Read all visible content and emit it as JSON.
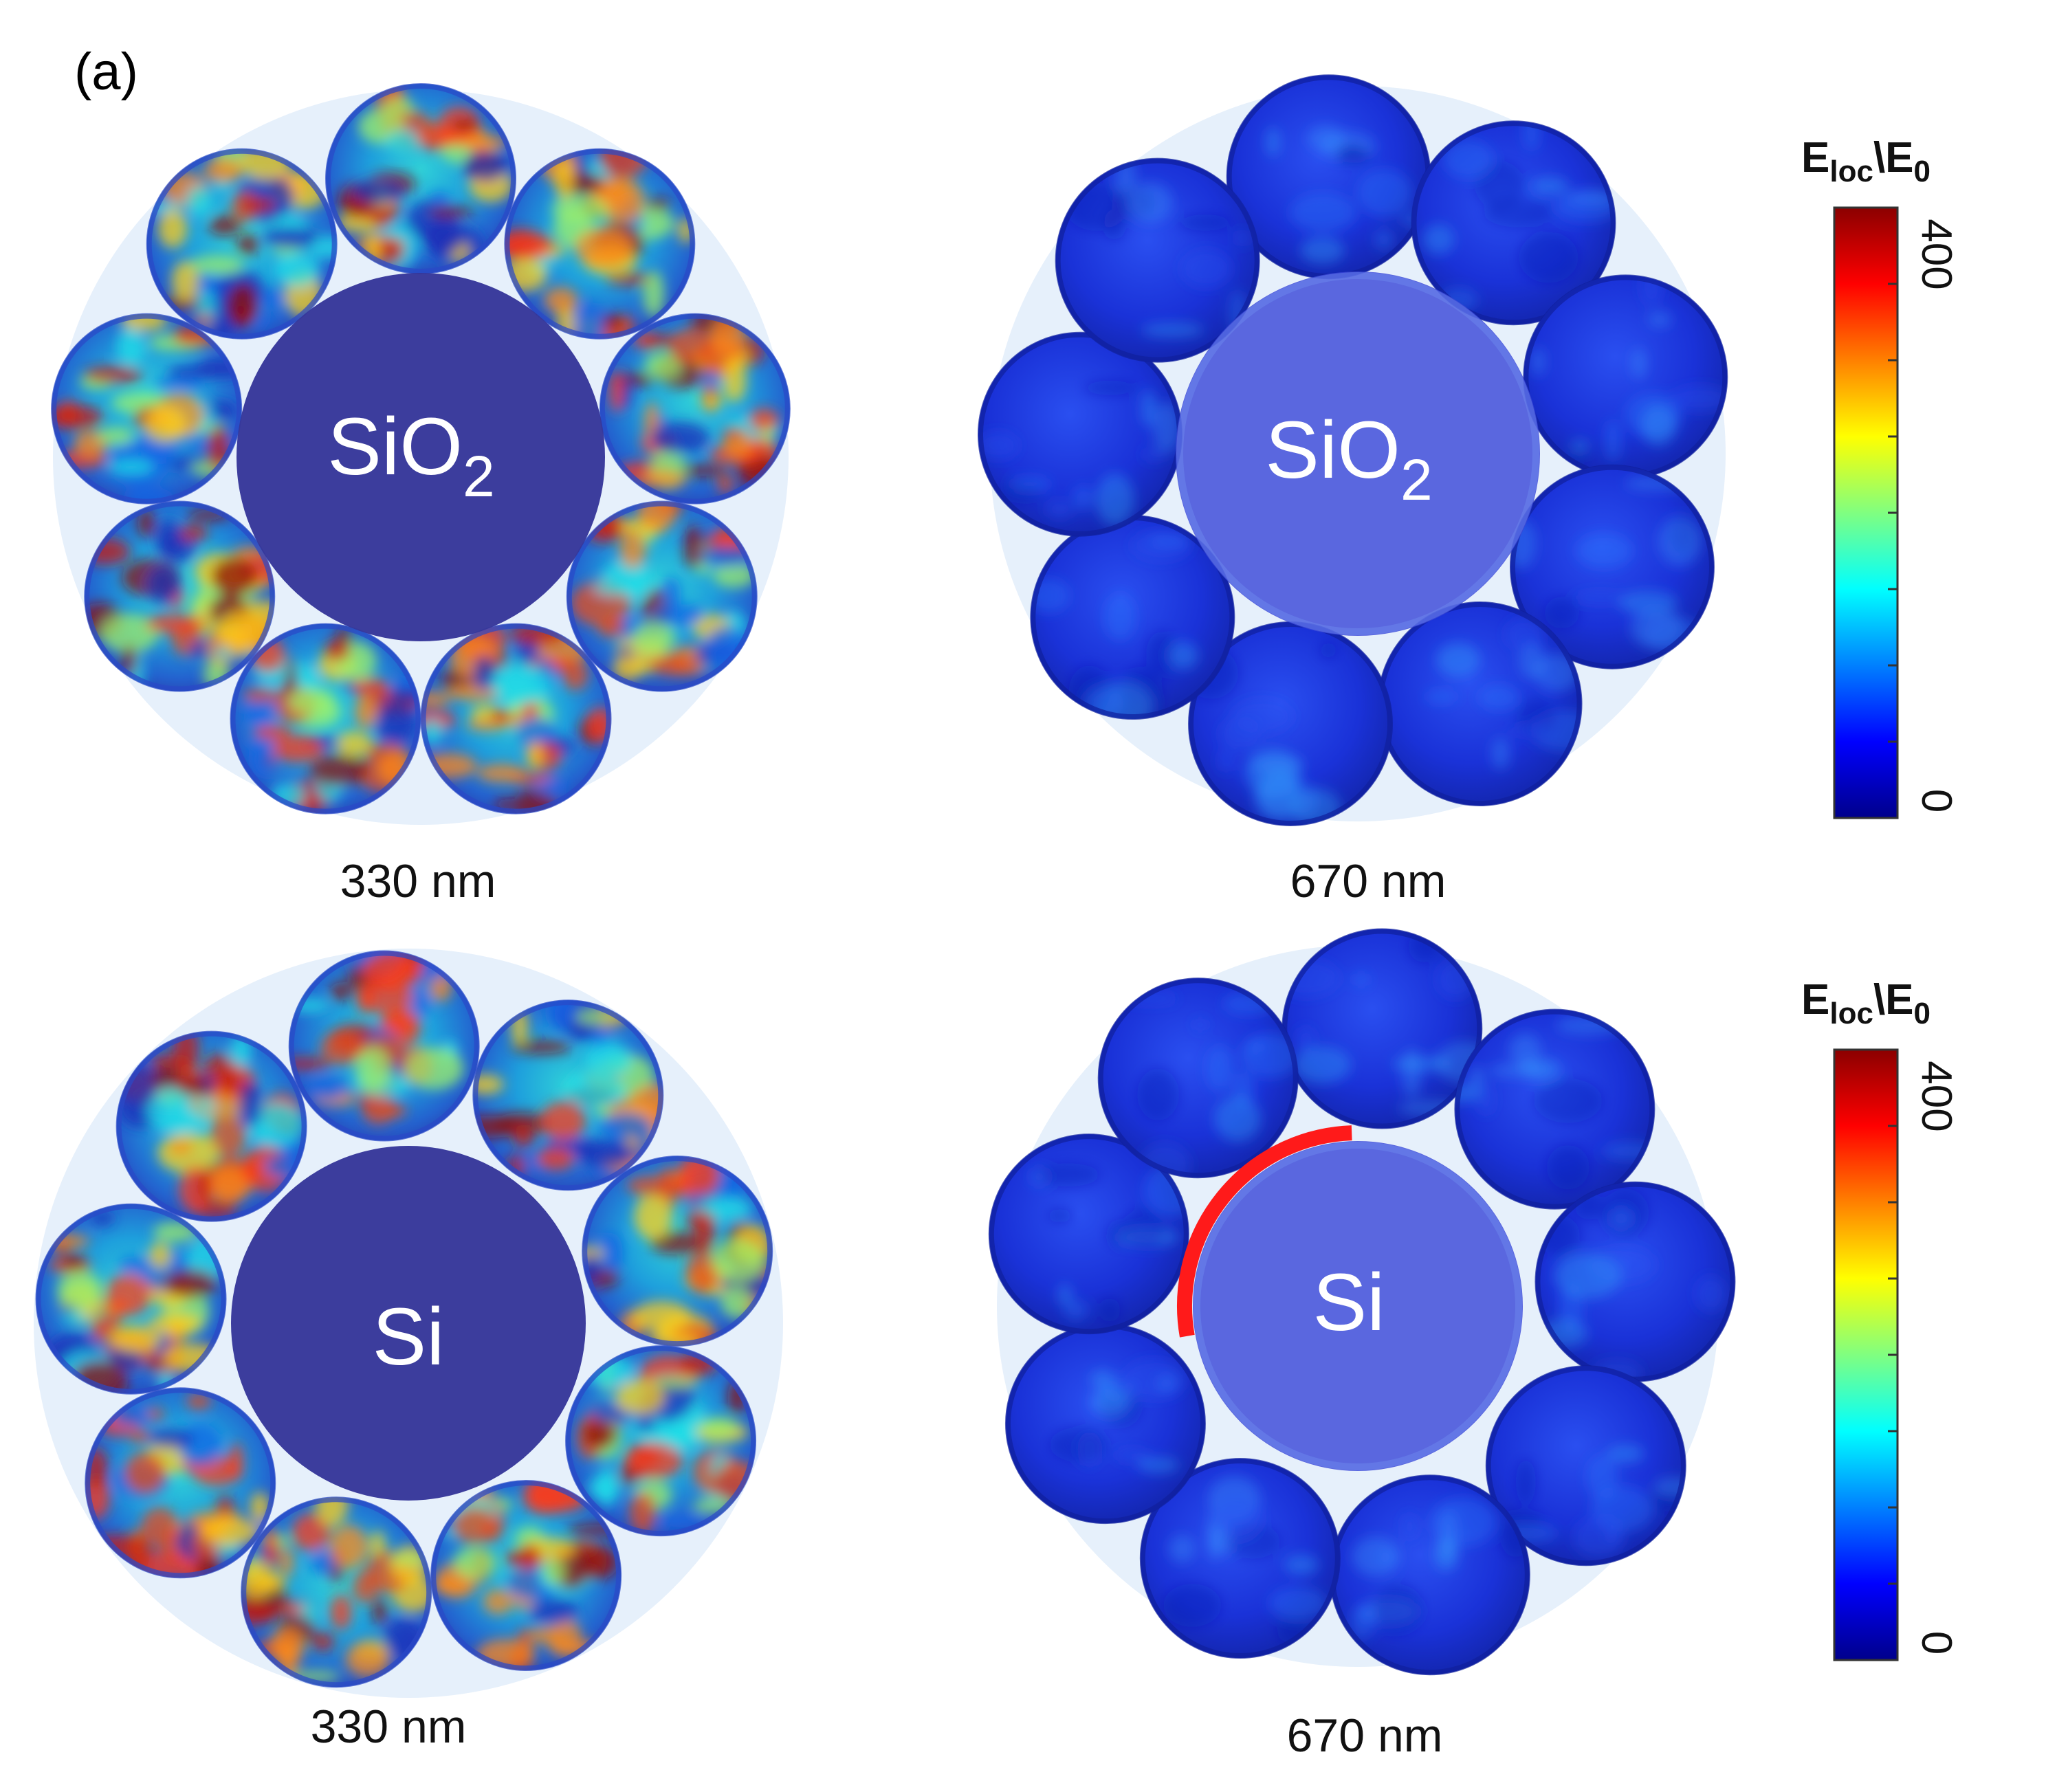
{
  "figure": {
    "panel_label": "(a)",
    "colorbar_title_main": "E",
    "colorbar_title_sub1": "loc",
    "colorbar_title_sep": "\\E",
    "colorbar_title_sub2": "0",
    "colorbar_max": "400",
    "colorbar_min": "0",
    "colors": {
      "background": "#ffffff",
      "halo": "#e6f0fb",
      "core_330": "#36379a",
      "sphere_hot_base": "#2aa8d8",
      "sphere_cold_base": "#1a2fd0",
      "marker": "#ff1a1a"
    },
    "colormap": [
      "#00008b",
      "#0000ff",
      "#0080ff",
      "#00ffff",
      "#80ff80",
      "#ffff00",
      "#ff8000",
      "#ff0000",
      "#8b0000"
    ]
  },
  "panels": [
    {
      "core": "SiO",
      "core_sub": "2",
      "wavelength": "330 nm",
      "field": "hot"
    },
    {
      "core": "SiO",
      "core_sub": "2",
      "wavelength": "670 nm",
      "field": "cold"
    },
    {
      "core": "Si",
      "core_sub": "",
      "wavelength": "330 nm",
      "field": "hot"
    },
    {
      "core": "Si",
      "core_sub": "",
      "wavelength": "670 nm",
      "field": "cold",
      "marker_arc": true
    }
  ]
}
